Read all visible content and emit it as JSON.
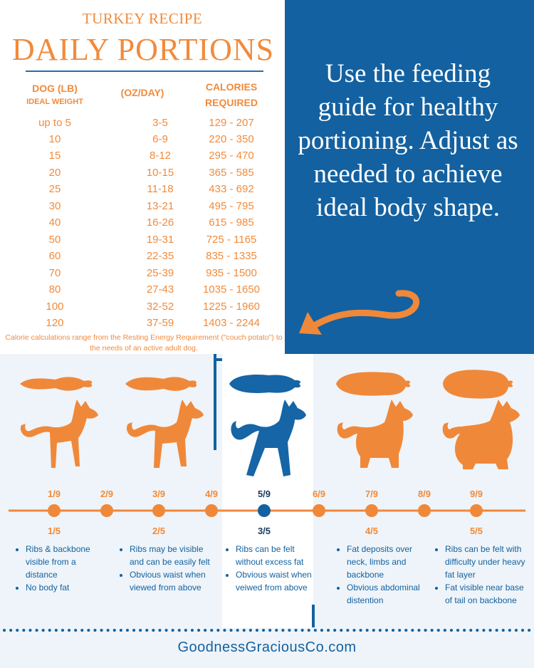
{
  "recipe": {
    "subtitle": "TURKEY RECIPE",
    "title": "DAILY PORTIONS",
    "headers": {
      "dog": "DOG (LB)",
      "dog_sub": "IDEAL WEIGHT",
      "oz": "(OZ/DAY)",
      "cal_1": "CALORIES",
      "cal_2": "REQUIRED"
    },
    "rows": [
      {
        "weight": "up to 5",
        "oz": "3-5",
        "cal": "129 - 207"
      },
      {
        "weight": "10",
        "oz": "6-9",
        "cal": "220 - 350"
      },
      {
        "weight": "15",
        "oz": "8-12",
        "cal": "295 - 470"
      },
      {
        "weight": "20",
        "oz": "10-15",
        "cal": "365 - 585"
      },
      {
        "weight": "25",
        "oz": "11-18",
        "cal": "433 - 692"
      },
      {
        "weight": "30",
        "oz": "13-21",
        "cal": "495 - 795"
      },
      {
        "weight": "40",
        "oz": "16-26",
        "cal": "615 - 985"
      },
      {
        "weight": "50",
        "oz": "19-31",
        "cal": "725 - 1165"
      },
      {
        "weight": "60",
        "oz": "22-35",
        "cal": "835 - 1335"
      },
      {
        "weight": "70",
        "oz": "25-39",
        "cal": "935 - 1500"
      },
      {
        "weight": "80",
        "oz": "27-43",
        "cal": "1035 - 1650"
      },
      {
        "weight": "100",
        "oz": "32-52",
        "cal": "1225 - 1960"
      },
      {
        "weight": "120",
        "oz": "37-59",
        "cal": "1403 - 2244"
      }
    ],
    "footnote_1": "Calorie calculations range from the Resting Energy Requirement (\"couch potato\") to",
    "footnote_2": "the needs of an active adult dog."
  },
  "guide": {
    "text": "Use the feeding guide for healthy portioning. Adjust as needed to achieve ideal body shape."
  },
  "scale": {
    "nine_point": [
      "1/9",
      "2/9",
      "3/9",
      "4/9",
      "5/9",
      "6/9",
      "7/9",
      "8/9",
      "9/9"
    ],
    "five_point": [
      "1/5",
      "2/5",
      "3/5",
      "4/5",
      "5/5"
    ],
    "highlighted": "5/9",
    "descriptions": [
      [
        "Ribs &  backbone visible from a distance",
        "No body fat"
      ],
      [
        "Ribs may be visible and can be easily felt",
        "Obvious waist when viewed from above"
      ],
      [
        "Ribs can be felt without excess fat",
        "Obvious waist when veiwed from above"
      ],
      [
        "Fat deposits over neck, limbs and backbone",
        "Obvious abdominal distention"
      ],
      [
        "Ribs can be felt with difficulty under heavy fat layer",
        "Fat visible near base of tail on backbone"
      ]
    ]
  },
  "site": "GoodnessGraciousCo.com",
  "colors": {
    "orange": "#f0883a",
    "blue": "#1361a0",
    "light_bg": "#eef4f9"
  }
}
